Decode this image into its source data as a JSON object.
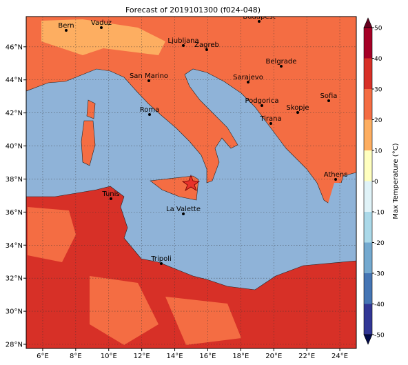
{
  "map": {
    "title": "Forecast of 2019101300 (f024-048)",
    "xlim": [
      5,
      25
    ],
    "ylim": [
      27.75,
      47.83
    ],
    "xticks": [
      {
        "value": 6,
        "label": "6°E"
      },
      {
        "value": 8,
        "label": "8°E"
      },
      {
        "value": 10,
        "label": "10°E"
      },
      {
        "value": 12,
        "label": "12°E"
      },
      {
        "value": 14,
        "label": "14°E"
      },
      {
        "value": 16,
        "label": "16°E"
      },
      {
        "value": 18,
        "label": "18°E"
      },
      {
        "value": 20,
        "label": "20°E"
      },
      {
        "value": 22,
        "label": "22°E"
      },
      {
        "value": 24,
        "label": "24°E"
      }
    ],
    "yticks": [
      {
        "value": 28,
        "label": "28°N"
      },
      {
        "value": 30,
        "label": "30°N"
      },
      {
        "value": 32,
        "label": "32°N"
      },
      {
        "value": 34,
        "label": "34°N"
      },
      {
        "value": 36,
        "label": "36°N"
      },
      {
        "value": 38,
        "label": "38°N"
      },
      {
        "value": 40,
        "label": "40°N"
      },
      {
        "value": 42,
        "label": "42°N"
      },
      {
        "value": 44,
        "label": "44°N"
      },
      {
        "value": 46,
        "label": "46°N"
      }
    ],
    "grid": true,
    "cities": [
      "Bern",
      "Vaduz",
      "Budapest",
      "Ljubljana",
      "Zagreb",
      "Belgrade",
      "San Marino",
      "Sarajevo",
      "Sofia",
      "Podgorica",
      "Roma",
      "Skopje",
      "Tirana",
      "Athens",
      "Tunis",
      "La Valette",
      "Tripoli"
    ],
    "colorbar": {
      "label": "Max Temperature (°C)",
      "ticks": [
        -50,
        -40,
        -30,
        -20,
        -10,
        0,
        10,
        20,
        30,
        40,
        50
      ],
      "colors": [
        "#313695",
        "#4575b4",
        "#74a9cf",
        "#abd9e9",
        "#e0f3f8",
        "#ffffbf",
        "#fdae61",
        "#f46d43",
        "#d73027",
        "#a50026"
      ]
    }
  }
}
